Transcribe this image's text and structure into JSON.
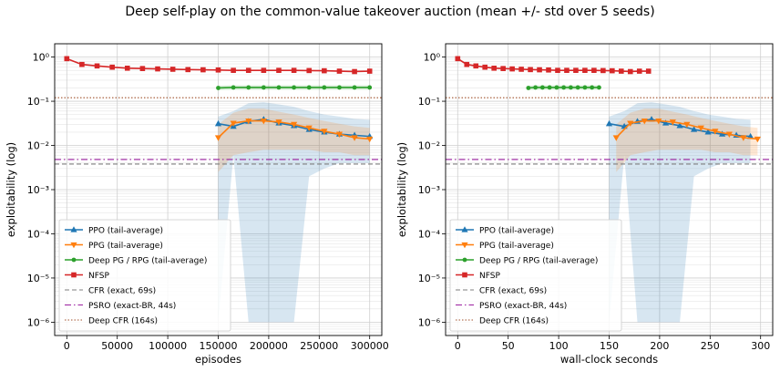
{
  "figure": {
    "title": "Deep self-play on the common-value takeover auction (mean +/- std over 5 seeds)"
  },
  "colors": {
    "ppo": "#1f77b4",
    "ppg": "#ff7f0e",
    "deep_pg": "#2ca02c",
    "nfsp": "#d62728",
    "cfr": "#7f7f7f",
    "psro": "#9b1fa0",
    "deep_cfr": "#a0522d"
  },
  "legend": {
    "ppo": "PPO (tail-average)",
    "ppg": "PPG (tail-average)",
    "deep_pg": "Deep PG / RPG (tail-average)",
    "nfsp": "NFSP",
    "cfr": "CFR (exact, 69s)",
    "psro": "PSRO (exact-BR, 44s)",
    "deep_cfr": "Deep CFR (164s)"
  },
  "chart_data": [
    {
      "type": "line",
      "xlabel": "episodes",
      "ylabel": "exploitability (log)",
      "yscale": "log",
      "xlim": [
        -12000,
        312000
      ],
      "ylim": [
        5e-07,
        2
      ],
      "grid": true,
      "legend_position": "lower-left",
      "x_ticks": [
        0,
        50000,
        100000,
        150000,
        200000,
        250000,
        300000
      ],
      "x_tick_labels": [
        "0",
        "50000",
        "100000",
        "150000",
        "200000",
        "250000",
        "300000"
      ],
      "series": [
        {
          "key": "ppo",
          "marker": "triangle-up",
          "x": [
            150000,
            165000,
            180000,
            195000,
            210000,
            225000,
            240000,
            255000,
            270000,
            285000,
            300000
          ],
          "y": [
            0.031,
            0.027,
            0.035,
            0.039,
            0.032,
            0.028,
            0.023,
            0.02,
            0.018,
            0.017,
            0.016
          ],
          "y_low": [
            1e-06,
            0.006,
            1e-06,
            1e-06,
            1e-06,
            1e-06,
            0.002,
            0.003,
            0.004,
            0.004,
            0.004
          ],
          "y_high": [
            0.045,
            0.06,
            0.09,
            0.095,
            0.085,
            0.075,
            0.06,
            0.05,
            0.045,
            0.04,
            0.038
          ]
        },
        {
          "key": "ppg",
          "marker": "triangle-down",
          "x": [
            150000,
            165000,
            180000,
            195000,
            210000,
            225000,
            240000,
            255000,
            270000,
            285000,
            300000
          ],
          "y": [
            0.015,
            0.032,
            0.036,
            0.036,
            0.034,
            0.03,
            0.025,
            0.021,
            0.018,
            0.015,
            0.014
          ],
          "y_low": [
            0.0025,
            0.006,
            0.007,
            0.008,
            0.008,
            0.008,
            0.008,
            0.007,
            0.007,
            0.006,
            0.006
          ],
          "y_high": [
            0.03,
            0.055,
            0.068,
            0.068,
            0.058,
            0.05,
            0.042,
            0.036,
            0.031,
            0.027,
            0.025
          ]
        },
        {
          "key": "deep_pg",
          "marker": "circle",
          "x": [
            150000,
            165000,
            180000,
            195000,
            210000,
            225000,
            240000,
            255000,
            270000,
            285000,
            300000
          ],
          "y": [
            0.2,
            0.205,
            0.205,
            0.205,
            0.205,
            0.205,
            0.205,
            0.205,
            0.205,
            0.205,
            0.205
          ],
          "y_low": [
            0.178,
            0.182,
            0.182,
            0.182,
            0.182,
            0.182,
            0.182,
            0.182,
            0.182,
            0.182,
            0.182
          ],
          "y_high": [
            0.225,
            0.23,
            0.23,
            0.23,
            0.23,
            0.23,
            0.23,
            0.23,
            0.23,
            0.23,
            0.23
          ]
        },
        {
          "key": "nfsp",
          "marker": "square",
          "x": [
            0,
            15000,
            30000,
            45000,
            60000,
            75000,
            90000,
            105000,
            120000,
            135000,
            150000,
            165000,
            180000,
            195000,
            210000,
            225000,
            240000,
            255000,
            270000,
            285000,
            300000
          ],
          "y": [
            0.92,
            0.68,
            0.63,
            0.59,
            0.56,
            0.55,
            0.54,
            0.53,
            0.52,
            0.515,
            0.51,
            0.5,
            0.5,
            0.5,
            0.5,
            0.5,
            0.495,
            0.49,
            0.48,
            0.47,
            0.48
          ]
        }
      ],
      "hlines": [
        {
          "key": "cfr",
          "y": 0.0038,
          "style": "dashed"
        },
        {
          "key": "psro",
          "y": 0.0048,
          "style": "dashdot"
        },
        {
          "key": "deep_cfr",
          "y": 0.12,
          "style": "dotted"
        }
      ]
    },
    {
      "type": "line",
      "xlabel": "wall-clock seconds",
      "ylabel": "exploitability (log)",
      "yscale": "log",
      "xlim": [
        -12,
        312
      ],
      "ylim": [
        5e-07,
        2
      ],
      "grid": true,
      "legend_position": "lower-left",
      "x_ticks": [
        0,
        50,
        100,
        150,
        200,
        250,
        300
      ],
      "x_tick_labels": [
        "0",
        "50",
        "100",
        "150",
        "200",
        "250",
        "300"
      ],
      "series": [
        {
          "key": "ppo",
          "marker": "triangle-up",
          "x": [
            150,
            165,
            178,
            192,
            206,
            220,
            234,
            248,
            262,
            276,
            290
          ],
          "y": [
            0.031,
            0.027,
            0.035,
            0.039,
            0.032,
            0.028,
            0.023,
            0.02,
            0.018,
            0.017,
            0.016
          ],
          "y_low": [
            1e-06,
            0.006,
            1e-06,
            1e-06,
            1e-06,
            1e-06,
            0.002,
            0.003,
            0.004,
            0.004,
            0.004
          ],
          "y_high": [
            0.045,
            0.06,
            0.09,
            0.095,
            0.085,
            0.075,
            0.06,
            0.05,
            0.045,
            0.04,
            0.038
          ]
        },
        {
          "key": "ppg",
          "marker": "triangle-down",
          "x": [
            157,
            171,
            185,
            199,
            213,
            227,
            241,
            255,
            269,
            283,
            297
          ],
          "y": [
            0.015,
            0.032,
            0.036,
            0.036,
            0.034,
            0.03,
            0.025,
            0.021,
            0.018,
            0.015,
            0.014
          ],
          "y_low": [
            0.0025,
            0.006,
            0.007,
            0.008,
            0.008,
            0.008,
            0.008,
            0.007,
            0.007,
            0.006,
            0.006
          ],
          "y_high": [
            0.03,
            0.055,
            0.068,
            0.068,
            0.058,
            0.05,
            0.042,
            0.036,
            0.031,
            0.027,
            0.025
          ]
        },
        {
          "key": "deep_pg",
          "marker": "circle",
          "x": [
            70,
            77,
            84,
            91,
            98,
            105,
            112,
            119,
            126,
            133,
            140
          ],
          "y": [
            0.2,
            0.205,
            0.205,
            0.205,
            0.205,
            0.205,
            0.205,
            0.205,
            0.205,
            0.205,
            0.205
          ],
          "y_low": [
            0.178,
            0.182,
            0.182,
            0.182,
            0.182,
            0.182,
            0.182,
            0.182,
            0.182,
            0.182,
            0.182
          ],
          "y_high": [
            0.225,
            0.23,
            0.23,
            0.23,
            0.23,
            0.23,
            0.23,
            0.23,
            0.23,
            0.23,
            0.23
          ]
        },
        {
          "key": "nfsp",
          "marker": "square",
          "x": [
            0,
            9,
            18,
            27,
            36,
            45,
            54,
            63,
            72,
            81,
            90,
            99,
            108,
            117,
            126,
            135,
            144,
            153,
            162,
            171,
            180,
            189
          ],
          "y": [
            0.92,
            0.68,
            0.63,
            0.59,
            0.56,
            0.55,
            0.54,
            0.53,
            0.52,
            0.515,
            0.51,
            0.5,
            0.5,
            0.5,
            0.5,
            0.5,
            0.495,
            0.49,
            0.48,
            0.47,
            0.48,
            0.48
          ]
        }
      ],
      "hlines": [
        {
          "key": "cfr",
          "y": 0.0038,
          "style": "dashed"
        },
        {
          "key": "psro",
          "y": 0.0048,
          "style": "dashdot"
        },
        {
          "key": "deep_cfr",
          "y": 0.12,
          "style": "dotted"
        }
      ]
    }
  ]
}
